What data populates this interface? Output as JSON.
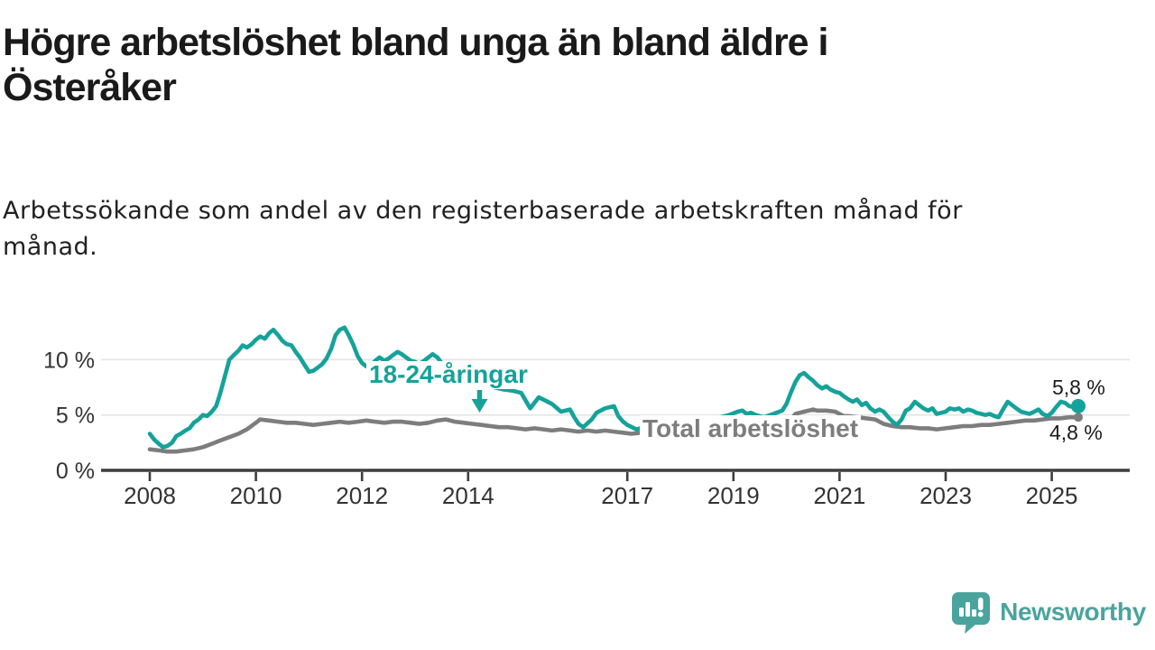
{
  "header": {
    "title_line1": "Högre arbetslöshet bland unga än bland äldre i",
    "title_line2": "Österåker",
    "subtitle_line1": "Arbetssökande som andel av den registerbaserade arbetskraften månad för",
    "subtitle_line2": "månad."
  },
  "footer": {
    "brand": "Newsworthy"
  },
  "colors": {
    "young_series": "#15a29a",
    "total_series": "#7d7d7d",
    "logo_teal": "#4aa49d",
    "gridline": "#e3e3e3",
    "axis": "#3d3d3d",
    "title_text": "#1a1a1a",
    "value_label_text": "#1c1c1c"
  },
  "chart_data": {
    "type": "line",
    "unit": "%",
    "grid": "horizontal",
    "legend_position": "inline-annotations",
    "x_range": [
      2008,
      2025.5
    ],
    "y_range": [
      0,
      13.5
    ],
    "x_ticks": [
      2008,
      2010,
      2012,
      2014,
      2017,
      2019,
      2021,
      2023,
      2025
    ],
    "x_tick_labels": [
      "2008",
      "2010",
      "2012",
      "2014",
      "2017",
      "2019",
      "2021",
      "2023",
      "2025"
    ],
    "y_ticks": [
      0,
      5,
      10
    ],
    "y_tick_labels": [
      "0 %",
      "5 %",
      "10 %"
    ],
    "series": [
      {
        "name": "18-24-åringar",
        "color": "#15a29a",
        "end_label": "5,8 %",
        "end_value": 5.8,
        "end_dot": true,
        "end_dot_radius": 8,
        "points": [
          [
            2008.0,
            3.3
          ],
          [
            2008.08,
            2.8
          ],
          [
            2008.17,
            2.4
          ],
          [
            2008.25,
            2.1
          ],
          [
            2008.33,
            2.2
          ],
          [
            2008.42,
            2.5
          ],
          [
            2008.5,
            3.1
          ],
          [
            2008.58,
            3.3
          ],
          [
            2008.67,
            3.6
          ],
          [
            2008.75,
            3.8
          ],
          [
            2008.83,
            4.3
          ],
          [
            2008.92,
            4.6
          ],
          [
            2009.0,
            5.0
          ],
          [
            2009.08,
            4.9
          ],
          [
            2009.17,
            5.3
          ],
          [
            2009.25,
            5.8
          ],
          [
            2009.33,
            7.0
          ],
          [
            2009.42,
            8.6
          ],
          [
            2009.5,
            10.0
          ],
          [
            2009.58,
            10.4
          ],
          [
            2009.67,
            10.8
          ],
          [
            2009.75,
            11.3
          ],
          [
            2009.83,
            11.1
          ],
          [
            2009.92,
            11.4
          ],
          [
            2010.0,
            11.8
          ],
          [
            2010.08,
            12.1
          ],
          [
            2010.17,
            11.9
          ],
          [
            2010.25,
            12.4
          ],
          [
            2010.33,
            12.7
          ],
          [
            2010.42,
            12.2
          ],
          [
            2010.5,
            11.7
          ],
          [
            2010.58,
            11.4
          ],
          [
            2010.67,
            11.3
          ],
          [
            2010.75,
            10.7
          ],
          [
            2010.83,
            10.2
          ],
          [
            2010.92,
            9.5
          ],
          [
            2011.0,
            8.9
          ],
          [
            2011.08,
            9.0
          ],
          [
            2011.17,
            9.3
          ],
          [
            2011.25,
            9.6
          ],
          [
            2011.33,
            10.1
          ],
          [
            2011.42,
            11.0
          ],
          [
            2011.5,
            12.2
          ],
          [
            2011.58,
            12.7
          ],
          [
            2011.67,
            12.9
          ],
          [
            2011.75,
            12.2
          ],
          [
            2011.83,
            11.4
          ],
          [
            2011.92,
            10.3
          ],
          [
            2012.0,
            9.7
          ],
          [
            2012.08,
            9.4
          ],
          [
            2012.17,
            9.5
          ],
          [
            2012.25,
            9.9
          ],
          [
            2012.33,
            10.2
          ],
          [
            2012.42,
            9.9
          ],
          [
            2012.5,
            10.1
          ],
          [
            2012.58,
            10.4
          ],
          [
            2012.67,
            10.7
          ],
          [
            2012.75,
            10.5
          ],
          [
            2012.83,
            10.2
          ],
          [
            2012.92,
            9.9
          ],
          [
            2013.0,
            9.8
          ],
          [
            2013.08,
            9.6
          ],
          [
            2013.17,
            9.9
          ],
          [
            2013.25,
            10.2
          ],
          [
            2013.33,
            10.5
          ],
          [
            2013.42,
            10.2
          ],
          [
            2013.5,
            9.7
          ],
          [
            2013.58,
            9.2
          ],
          [
            2013.67,
            8.9
          ],
          [
            2013.75,
            8.6
          ],
          [
            2013.83,
            8.4
          ],
          [
            2013.92,
            8.1
          ],
          [
            2014.0,
            7.9
          ],
          [
            2014.17,
            7.7
          ],
          [
            2014.33,
            7.9
          ],
          [
            2014.5,
            7.5
          ],
          [
            2014.67,
            7.3
          ],
          [
            2014.83,
            7.2
          ],
          [
            2015.0,
            7.0
          ],
          [
            2015.17,
            5.6
          ],
          [
            2015.25,
            6.1
          ],
          [
            2015.33,
            6.6
          ],
          [
            2015.5,
            6.2
          ],
          [
            2015.58,
            6.0
          ],
          [
            2015.75,
            5.3
          ],
          [
            2015.92,
            5.5
          ],
          [
            2016.0,
            4.8
          ],
          [
            2016.08,
            4.2
          ],
          [
            2016.17,
            3.9
          ],
          [
            2016.33,
            4.6
          ],
          [
            2016.42,
            5.2
          ],
          [
            2016.58,
            5.6
          ],
          [
            2016.75,
            5.8
          ],
          [
            2016.83,
            4.9
          ],
          [
            2016.92,
            4.4
          ],
          [
            2017.0,
            4.1
          ],
          [
            2017.17,
            3.7
          ],
          [
            2017.33,
            3.9
          ],
          [
            2017.5,
            3.8
          ],
          [
            2017.67,
            4.1
          ],
          [
            2017.83,
            4.3
          ],
          [
            2018.0,
            4.0
          ],
          [
            2018.17,
            4.2
          ],
          [
            2018.33,
            4.4
          ],
          [
            2018.5,
            4.5
          ],
          [
            2018.75,
            4.8
          ],
          [
            2018.92,
            5.0
          ],
          [
            2019.08,
            5.3
          ],
          [
            2019.17,
            5.4
          ],
          [
            2019.25,
            5.1
          ],
          [
            2019.33,
            5.2
          ],
          [
            2019.42,
            5.0
          ],
          [
            2019.58,
            4.8
          ],
          [
            2019.75,
            5.1
          ],
          [
            2019.92,
            5.4
          ],
          [
            2020.0,
            6.0
          ],
          [
            2020.08,
            7.0
          ],
          [
            2020.17,
            8.0
          ],
          [
            2020.25,
            8.6
          ],
          [
            2020.33,
            8.8
          ],
          [
            2020.42,
            8.4
          ],
          [
            2020.5,
            8.1
          ],
          [
            2020.58,
            7.7
          ],
          [
            2020.67,
            7.4
          ],
          [
            2020.75,
            7.6
          ],
          [
            2020.83,
            7.3
          ],
          [
            2020.92,
            7.1
          ],
          [
            2021.0,
            7.0
          ],
          [
            2021.08,
            6.7
          ],
          [
            2021.17,
            6.4
          ],
          [
            2021.25,
            6.2
          ],
          [
            2021.33,
            6.4
          ],
          [
            2021.42,
            5.9
          ],
          [
            2021.5,
            6.1
          ],
          [
            2021.58,
            5.6
          ],
          [
            2021.67,
            5.3
          ],
          [
            2021.75,
            5.5
          ],
          [
            2021.83,
            5.3
          ],
          [
            2021.92,
            4.8
          ],
          [
            2022.0,
            4.4
          ],
          [
            2022.08,
            4.1
          ],
          [
            2022.17,
            4.6
          ],
          [
            2022.25,
            5.4
          ],
          [
            2022.33,
            5.6
          ],
          [
            2022.42,
            6.2
          ],
          [
            2022.5,
            5.9
          ],
          [
            2022.58,
            5.6
          ],
          [
            2022.67,
            5.4
          ],
          [
            2022.75,
            5.6
          ],
          [
            2022.83,
            5.1
          ],
          [
            2022.92,
            5.2
          ],
          [
            2023.0,
            5.3
          ],
          [
            2023.08,
            5.6
          ],
          [
            2023.17,
            5.5
          ],
          [
            2023.25,
            5.6
          ],
          [
            2023.33,
            5.3
          ],
          [
            2023.42,
            5.5
          ],
          [
            2023.5,
            5.4
          ],
          [
            2023.58,
            5.2
          ],
          [
            2023.67,
            5.1
          ],
          [
            2023.75,
            5.0
          ],
          [
            2023.83,
            5.1
          ],
          [
            2023.92,
            4.9
          ],
          [
            2024.0,
            4.8
          ],
          [
            2024.08,
            5.5
          ],
          [
            2024.17,
            6.2
          ],
          [
            2024.25,
            5.9
          ],
          [
            2024.33,
            5.6
          ],
          [
            2024.42,
            5.3
          ],
          [
            2024.5,
            5.2
          ],
          [
            2024.58,
            5.1
          ],
          [
            2024.67,
            5.3
          ],
          [
            2024.75,
            5.5
          ],
          [
            2024.83,
            5.1
          ],
          [
            2024.92,
            4.9
          ],
          [
            2025.0,
            5.2
          ],
          [
            2025.08,
            5.7
          ],
          [
            2025.17,
            6.2
          ],
          [
            2025.25,
            6.1
          ],
          [
            2025.33,
            5.8
          ],
          [
            2025.42,
            5.7
          ],
          [
            2025.5,
            5.8
          ]
        ]
      },
      {
        "name": "Total arbetslöshet",
        "color": "#7d7d7d",
        "end_label": "4,8 %",
        "end_value": 4.8,
        "end_dot": true,
        "end_dot_radius": 5,
        "points": [
          [
            2008.0,
            1.9
          ],
          [
            2008.17,
            1.8
          ],
          [
            2008.33,
            1.7
          ],
          [
            2008.5,
            1.7
          ],
          [
            2008.67,
            1.8
          ],
          [
            2008.83,
            1.9
          ],
          [
            2009.0,
            2.1
          ],
          [
            2009.17,
            2.4
          ],
          [
            2009.33,
            2.7
          ],
          [
            2009.5,
            3.0
          ],
          [
            2009.67,
            3.3
          ],
          [
            2009.83,
            3.7
          ],
          [
            2010.0,
            4.3
          ],
          [
            2010.08,
            4.6
          ],
          [
            2010.25,
            4.5
          ],
          [
            2010.42,
            4.4
          ],
          [
            2010.58,
            4.3
          ],
          [
            2010.75,
            4.3
          ],
          [
            2010.92,
            4.2
          ],
          [
            2011.08,
            4.1
          ],
          [
            2011.25,
            4.2
          ],
          [
            2011.42,
            4.3
          ],
          [
            2011.58,
            4.4
          ],
          [
            2011.75,
            4.3
          ],
          [
            2011.92,
            4.4
          ],
          [
            2012.08,
            4.5
          ],
          [
            2012.25,
            4.4
          ],
          [
            2012.42,
            4.3
          ],
          [
            2012.58,
            4.4
          ],
          [
            2012.75,
            4.4
          ],
          [
            2012.92,
            4.3
          ],
          [
            2013.08,
            4.2
          ],
          [
            2013.25,
            4.3
          ],
          [
            2013.42,
            4.5
          ],
          [
            2013.58,
            4.6
          ],
          [
            2013.75,
            4.4
          ],
          [
            2013.92,
            4.3
          ],
          [
            2014.08,
            4.2
          ],
          [
            2014.25,
            4.1
          ],
          [
            2014.42,
            4.0
          ],
          [
            2014.58,
            3.9
          ],
          [
            2014.75,
            3.9
          ],
          [
            2014.92,
            3.8
          ],
          [
            2015.08,
            3.7
          ],
          [
            2015.25,
            3.8
          ],
          [
            2015.42,
            3.7
          ],
          [
            2015.58,
            3.6
          ],
          [
            2015.75,
            3.7
          ],
          [
            2015.92,
            3.6
          ],
          [
            2016.08,
            3.5
          ],
          [
            2016.25,
            3.6
          ],
          [
            2016.42,
            3.5
          ],
          [
            2016.58,
            3.6
          ],
          [
            2016.75,
            3.5
          ],
          [
            2016.92,
            3.4
          ],
          [
            2017.08,
            3.3
          ],
          [
            2017.25,
            3.4
          ],
          [
            2017.42,
            3.3
          ],
          [
            2017.58,
            3.2
          ],
          [
            2017.75,
            3.3
          ],
          [
            2017.92,
            3.2
          ],
          [
            2018.08,
            3.2
          ],
          [
            2018.25,
            3.3
          ],
          [
            2018.42,
            3.2
          ],
          [
            2018.58,
            3.3
          ],
          [
            2018.75,
            3.4
          ],
          [
            2018.92,
            3.4
          ],
          [
            2019.08,
            3.5
          ],
          [
            2019.25,
            3.6
          ],
          [
            2019.42,
            3.6
          ],
          [
            2019.58,
            3.7
          ],
          [
            2019.75,
            3.8
          ],
          [
            2019.92,
            4.0
          ],
          [
            2020.08,
            4.6
          ],
          [
            2020.17,
            5.1
          ],
          [
            2020.25,
            5.2
          ],
          [
            2020.33,
            5.3
          ],
          [
            2020.42,
            5.4
          ],
          [
            2020.5,
            5.5
          ],
          [
            2020.58,
            5.4
          ],
          [
            2020.75,
            5.4
          ],
          [
            2020.92,
            5.3
          ],
          [
            2021.0,
            5.1
          ],
          [
            2021.08,
            4.9
          ],
          [
            2021.17,
            4.9
          ],
          [
            2021.33,
            4.8
          ],
          [
            2021.5,
            4.7
          ],
          [
            2021.67,
            4.6
          ],
          [
            2021.83,
            4.2
          ],
          [
            2022.0,
            4.0
          ],
          [
            2022.17,
            3.9
          ],
          [
            2022.33,
            3.9
          ],
          [
            2022.5,
            3.8
          ],
          [
            2022.67,
            3.8
          ],
          [
            2022.83,
            3.7
          ],
          [
            2023.0,
            3.8
          ],
          [
            2023.17,
            3.9
          ],
          [
            2023.33,
            4.0
          ],
          [
            2023.5,
            4.0
          ],
          [
            2023.67,
            4.1
          ],
          [
            2023.83,
            4.1
          ],
          [
            2024.0,
            4.2
          ],
          [
            2024.17,
            4.3
          ],
          [
            2024.33,
            4.4
          ],
          [
            2024.5,
            4.5
          ],
          [
            2024.67,
            4.5
          ],
          [
            2024.83,
            4.6
          ],
          [
            2025.0,
            4.7
          ],
          [
            2025.17,
            4.7
          ],
          [
            2025.33,
            4.8
          ],
          [
            2025.5,
            4.8
          ]
        ]
      }
    ]
  }
}
